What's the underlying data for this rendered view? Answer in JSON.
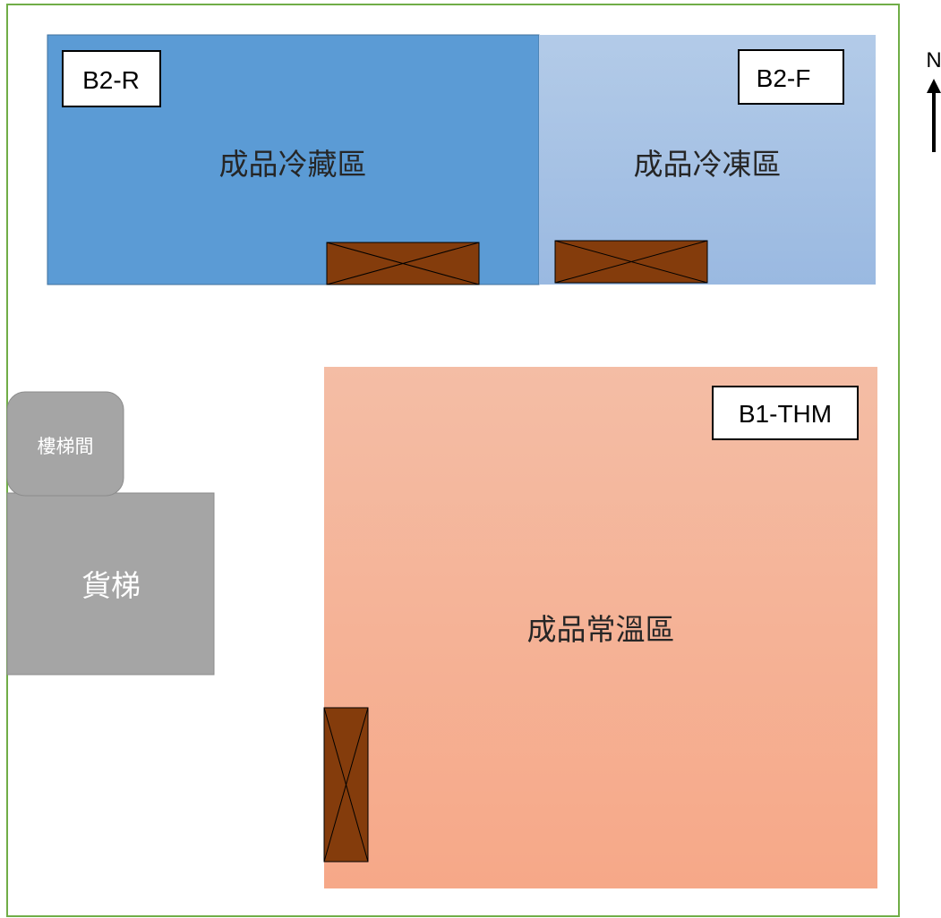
{
  "zones": {
    "refrigerated": {
      "code": "B2-R",
      "name": "成品冷藏區",
      "color": "#5b9bd5"
    },
    "frozen": {
      "code": "B2-F",
      "name": "成品冷凍區",
      "color": "#a9c6e8"
    },
    "ambient": {
      "code": "B1-THM",
      "name": "成品常溫區",
      "color": "#f6b49b"
    }
  },
  "facilities": {
    "stairwell": {
      "name": "樓梯間",
      "color": "#a5a5a5"
    },
    "freight_elevator": {
      "name": "貨梯",
      "color": "#a5a5a5"
    }
  },
  "compass": {
    "label": "N"
  },
  "door_color": "#843c0c",
  "wall_color": "#70ad47"
}
